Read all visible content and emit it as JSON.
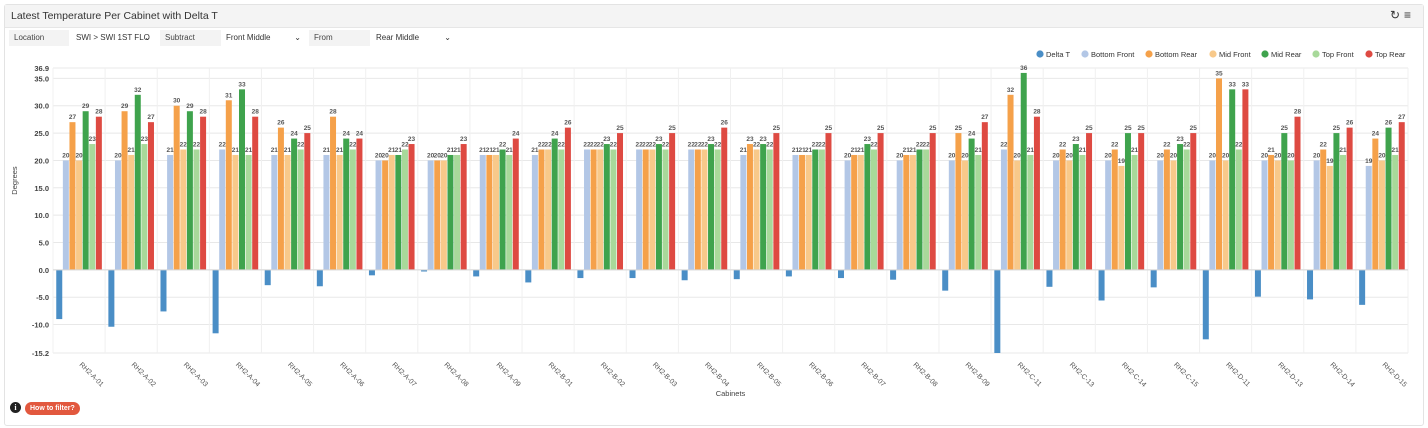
{
  "header": {
    "title": "Latest Temperature Per Cabinet with Delta T",
    "refresh_icon": "refresh-icon",
    "menu_icon": "menu-icon"
  },
  "filters": {
    "location_label": "Location",
    "location_value": "SWI > SWI 1ST FLO",
    "subtract_label": "Subtract",
    "subtract_value": "Front Middle",
    "from_label": "From",
    "from_value": "Rear Middle"
  },
  "footer": {
    "how_to_filter": "How to filter?",
    "info_icon": "info-icon",
    "info_glyph": "i"
  },
  "chart_data": {
    "type": "bar",
    "title": "Latest Temperature Per Cabinet with Delta T",
    "xlabel": "Cabinets",
    "ylabel": "Degrees",
    "ylim": [
      -15.2,
      36.9
    ],
    "yticks": [
      "36.9",
      "35.0",
      "30.0",
      "25.0",
      "20.0",
      "15.0",
      "10.0",
      "5.0",
      "0.0",
      "-5.0",
      "-10.0",
      "-15.2"
    ],
    "grid": true,
    "legend_position": "top-right",
    "categories": [
      "RH2-A-01",
      "RH2-A-02",
      "RH2-A-03",
      "RH2-A-04",
      "RH2-A-05",
      "RH2-A-06",
      "RH2-A-07",
      "RH2-A-08",
      "RH2-A-09",
      "RH2-B-01",
      "RH2-B-02",
      "RH2-B-03",
      "RH2-B-04",
      "RH2-B-05",
      "RH2-B-06",
      "RH2-B-07",
      "RH2-B-08",
      "RH2-B-09",
      "RH2-C-11",
      "RH2-C-13",
      "RH2-C-14",
      "RH2-C-15",
      "RH2-D-11",
      "RH2-D-13",
      "RH2-D-14",
      "RH2-D-15"
    ],
    "series": [
      {
        "name": "Delta T",
        "color": "#4a8ec6",
        "values": [
          -9.0,
          -10.4,
          -7.6,
          -11.6,
          -2.8,
          -3.0,
          -1.0,
          -0.3,
          -1.2,
          -2.3,
          -1.5,
          -1.5,
          -1.9,
          -1.7,
          -1.2,
          -1.5,
          -1.8,
          -3.8,
          -15.2,
          -3.1,
          -5.6,
          -3.2,
          -12.7,
          -4.9,
          -5.4,
          -6.4
        ]
      },
      {
        "name": "Bottom Front",
        "color": "#b3c7e6",
        "values": [
          20,
          20,
          21,
          22,
          21,
          21,
          20,
          20,
          21,
          21,
          22,
          22,
          22,
          21,
          21,
          20,
          20,
          20,
          22,
          20,
          20,
          20,
          20,
          20,
          20,
          19
        ]
      },
      {
        "name": "Bottom Rear",
        "color": "#f5a14a",
        "values": [
          27,
          29,
          30,
          31,
          26,
          28,
          20,
          20,
          21,
          22,
          22,
          22,
          22,
          23,
          21,
          21,
          21,
          25,
          32,
          22,
          22,
          22,
          35,
          21,
          22,
          24
        ]
      },
      {
        "name": "Mid Front",
        "color": "#f8c98a",
        "values": [
          20,
          21,
          22,
          21,
          21,
          21,
          21,
          20,
          21,
          22,
          22,
          22,
          22,
          22,
          21,
          21,
          21,
          20,
          20,
          20,
          19,
          20,
          20,
          20,
          19,
          20
        ]
      },
      {
        "name": "Mid Rear",
        "color": "#3fa34d",
        "values": [
          29,
          32,
          29,
          33,
          24,
          24,
          21,
          21,
          22,
          24,
          23,
          23,
          23,
          23,
          22,
          23,
          22,
          24,
          36,
          23,
          25,
          23,
          33,
          25,
          25,
          26
        ]
      },
      {
        "name": "Top Front",
        "color": "#a8d99a",
        "values": [
          23,
          23,
          22,
          21,
          22,
          22,
          22,
          21,
          21,
          22,
          22,
          22,
          22,
          22,
          22,
          22,
          22,
          21,
          21,
          21,
          21,
          22,
          22,
          20,
          21,
          21
        ]
      },
      {
        "name": "Top Rear",
        "color": "#de4a42",
        "values": [
          28,
          27,
          28,
          28,
          25,
          24,
          23,
          23,
          24,
          26,
          25,
          25,
          26,
          25,
          25,
          25,
          25,
          27,
          28,
          25,
          25,
          25,
          33,
          28,
          26,
          27
        ]
      }
    ],
    "labeled_series": [
      "Bottom Front",
      "Bottom Rear",
      "Mid Front",
      "Mid Rear",
      "Top Front",
      "Top Rear"
    ]
  }
}
